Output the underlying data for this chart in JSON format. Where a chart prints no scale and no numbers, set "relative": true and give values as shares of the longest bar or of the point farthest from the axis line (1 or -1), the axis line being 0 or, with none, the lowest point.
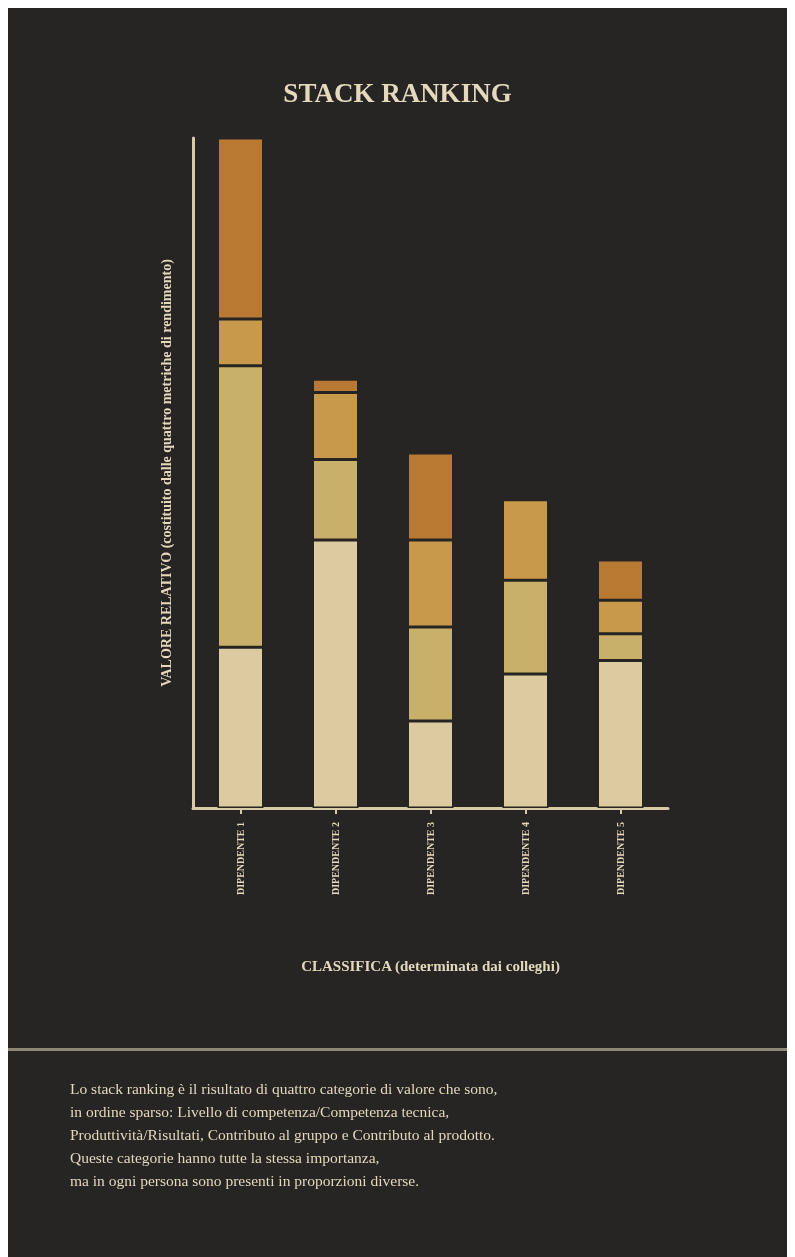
{
  "chart_data": {
    "type": "bar",
    "title": "STACK RANKING",
    "xlabel": "CLASSIFICA (determinata dai colleghi)",
    "ylabel": "VALORE RELATIVO (costituito dalle quattro metriche di rendimento)",
    "categories": [
      "DIPENDENTE 1",
      "DIPENDENTE 2",
      "DIPENDENTE 3",
      "DIPENDENTE 4",
      "DIPENDENTE 5"
    ],
    "stacked": true,
    "relative": true,
    "series": [
      {
        "color": "#dccaa0",
        "values": [
          0.24,
          0.4,
          0.13,
          0.2,
          0.22
        ]
      },
      {
        "color": "#c9b06a",
        "values": [
          0.42,
          0.12,
          0.14,
          0.14,
          0.04
        ]
      },
      {
        "color": "#c8994a",
        "values": [
          0.07,
          0.1,
          0.13,
          0.12,
          0.05
        ]
      },
      {
        "color": "#b87a33",
        "values": [
          0.27,
          0.02,
          0.13,
          null,
          0.06
        ]
      }
    ],
    "grid": false,
    "annotations": [
      "Lo stack ranking è il risultato di quattro categorie di valore che sono,\nin ordine sparso: Livello di competenza/Competenza tecnica,\nProduttività/Risultati, Contributo al gruppo e Contributo al prodotto.\nQueste categorie hanno tutte la stessa importanza,\nma in ogni persona sono presenti in proporzioni diverse."
    ]
  }
}
